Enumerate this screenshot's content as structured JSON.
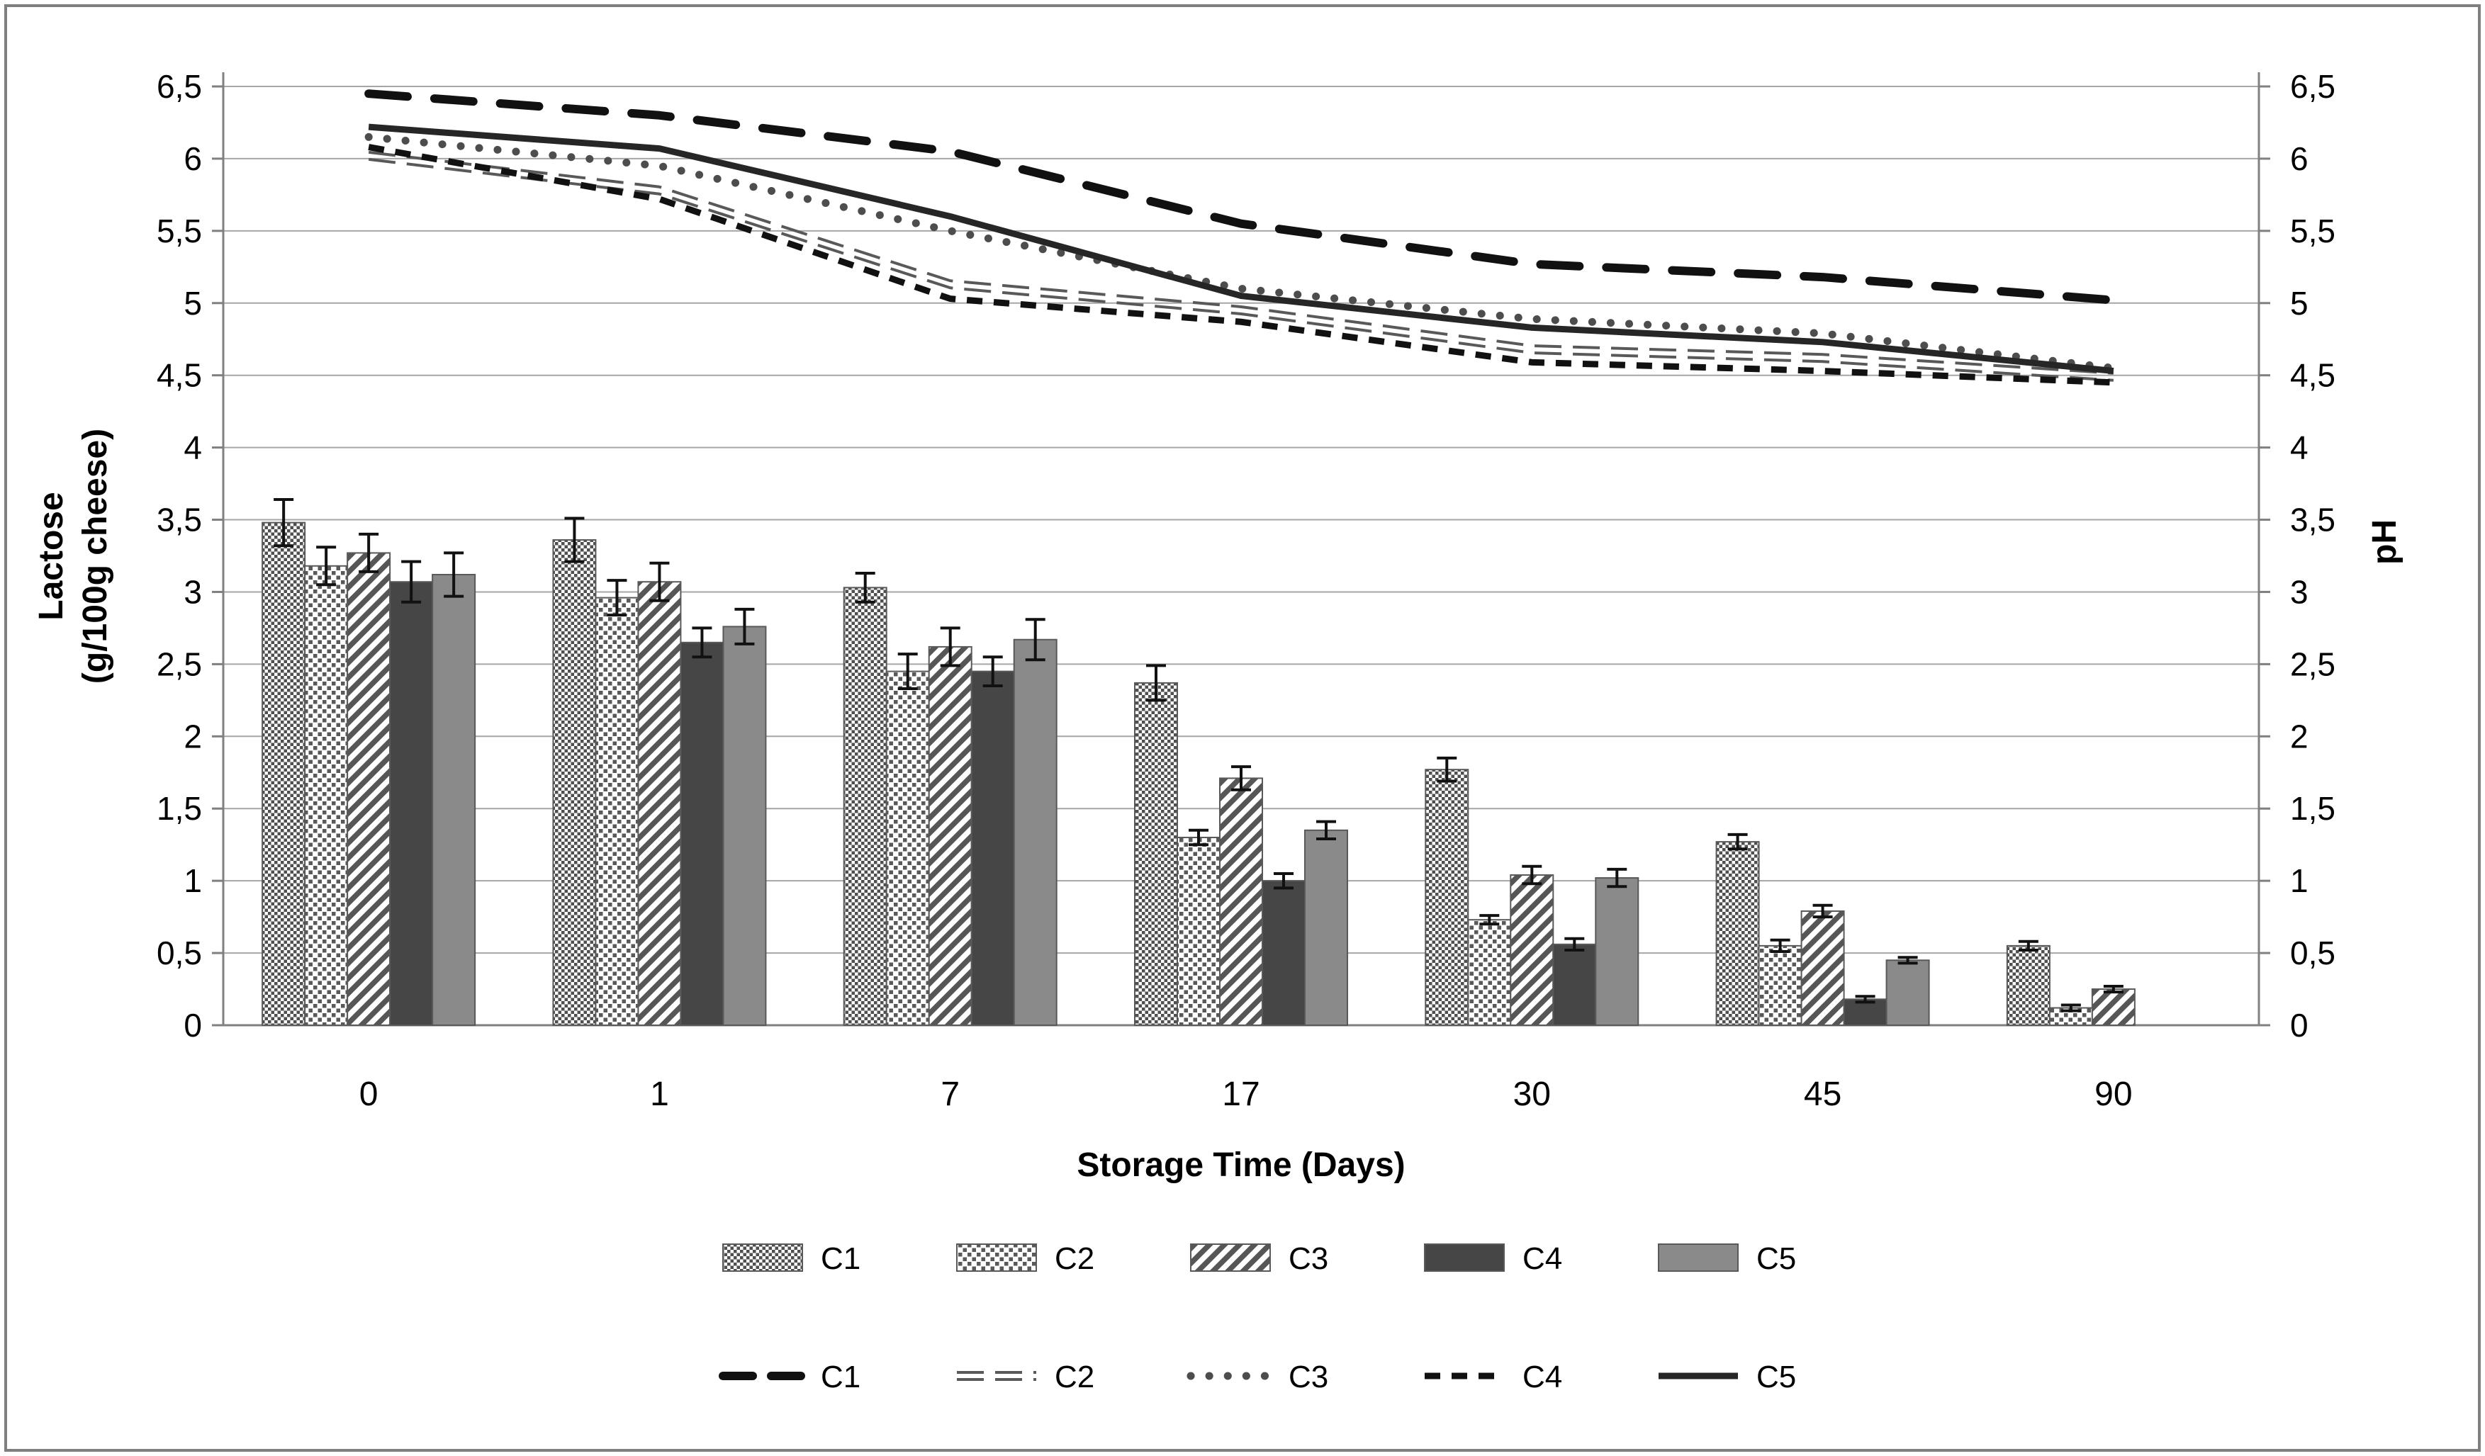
{
  "figure": {
    "background": "#ffffff",
    "border_color": "#7f7f7f",
    "gridline_color": "#a6a6a6",
    "axis_line_color": "#808080"
  },
  "chart_data": {
    "type": "bar+line",
    "title": "",
    "categories": [
      "0",
      "1",
      "7",
      "17",
      "30",
      "45",
      "90"
    ],
    "x_axis": {
      "title": "Storage Time (Days)"
    },
    "left_axis": {
      "title_line1": "Lactose",
      "title_line2": "(g/100g cheese)",
      "min": 0,
      "max": 6.5,
      "step": 0.5,
      "tick_labels": [
        "0",
        "0,5",
        "1",
        "1,5",
        "2",
        "2,5",
        "3",
        "3,5",
        "4",
        "4,5",
        "5",
        "5,5",
        "6",
        "6,5"
      ]
    },
    "right_axis": {
      "title": "pH",
      "min": 0,
      "max": 6.5,
      "step": 0.5,
      "tick_labels": [
        "0",
        "0,5",
        "1",
        "1,5",
        "2",
        "2,5",
        "3",
        "3,5",
        "4",
        "4,5",
        "5",
        "5,5",
        "6",
        "6,5"
      ]
    },
    "grid": "horizontal",
    "legend_position": "bottom",
    "bar_series": [
      {
        "name": "C1",
        "pattern": "checker-fine",
        "color": "#4f4f4f",
        "values": [
          3.48,
          3.36,
          3.03,
          2.37,
          1.77,
          1.27,
          0.55
        ],
        "errors": [
          0.16,
          0.15,
          0.1,
          0.12,
          0.08,
          0.05,
          0.03
        ]
      },
      {
        "name": "C2",
        "pattern": "checker-open",
        "color": "#595959",
        "values": [
          3.18,
          2.96,
          2.45,
          1.3,
          0.73,
          0.55,
          0.12
        ],
        "errors": [
          0.13,
          0.12,
          0.12,
          0.05,
          0.03,
          0.04,
          0.02
        ]
      },
      {
        "name": "C3",
        "pattern": "diagonal-stripes",
        "color": "#565656",
        "values": [
          3.27,
          3.07,
          2.62,
          1.71,
          1.04,
          0.79,
          0.25
        ],
        "errors": [
          0.13,
          0.13,
          0.13,
          0.08,
          0.06,
          0.04,
          0.02
        ]
      },
      {
        "name": "C4",
        "pattern": "solid-dark",
        "color": "#464646",
        "values": [
          3.07,
          2.65,
          2.45,
          1.0,
          0.56,
          0.18,
          0
        ],
        "errors": [
          0.14,
          0.1,
          0.1,
          0.05,
          0.04,
          0.02,
          0
        ]
      },
      {
        "name": "C5",
        "pattern": "solid-gray",
        "color": "#8a8a8a",
        "values": [
          3.12,
          2.76,
          2.67,
          1.35,
          1.02,
          0.45,
          0
        ],
        "errors": [
          0.15,
          0.12,
          0.14,
          0.06,
          0.06,
          0.02,
          0
        ]
      }
    ],
    "line_series": [
      {
        "name": "C1",
        "style": "bold-dash",
        "color": "#111111",
        "values": [
          6.45,
          6.3,
          6.05,
          5.55,
          5.27,
          5.18,
          5.02
        ]
      },
      {
        "name": "C2",
        "style": "double-dash",
        "color": "#595959",
        "values": [
          6.02,
          5.78,
          5.13,
          4.95,
          4.68,
          4.62,
          4.49
        ]
      },
      {
        "name": "C3",
        "style": "dotted",
        "color": "#4d4d4d",
        "values": [
          6.15,
          5.95,
          5.5,
          5.1,
          4.89,
          4.79,
          4.55
        ]
      },
      {
        "name": "C4",
        "style": "short-dash",
        "color": "#111111",
        "values": [
          6.08,
          5.72,
          5.03,
          4.87,
          4.59,
          4.53,
          4.45
        ]
      },
      {
        "name": "C5",
        "style": "solid",
        "color": "#262626",
        "values": [
          6.22,
          6.07,
          5.6,
          5.05,
          4.83,
          4.73,
          4.53
        ]
      }
    ],
    "legend": {
      "bar_row_labels": [
        "C1",
        "C2",
        "C3",
        "C4",
        "C5"
      ],
      "line_row_labels": [
        "C1",
        "C2",
        "C3",
        "C4",
        "C5"
      ]
    }
  }
}
